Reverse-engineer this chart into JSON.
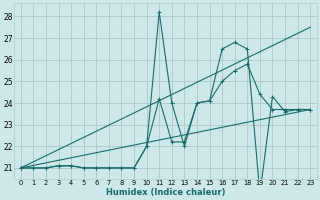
{
  "xlabel": "Humidex (Indice chaleur)",
  "bg_color": "#cde8e8",
  "grid_color": "#b0cccc",
  "line_color": "#1a6b6b",
  "xlim": [
    -0.5,
    23.5
  ],
  "ylim": [
    20.5,
    28.6
  ],
  "yticks": [
    21,
    22,
    23,
    24,
    25,
    26,
    27,
    28
  ],
  "xticks": [
    0,
    1,
    2,
    3,
    4,
    5,
    6,
    7,
    8,
    9,
    10,
    11,
    12,
    13,
    14,
    15,
    16,
    17,
    18,
    19,
    20,
    21,
    22,
    23
  ],
  "series": [
    {
      "x": [
        0,
        1,
        2,
        3,
        4,
        5,
        6,
        7,
        8,
        9,
        10,
        11,
        12,
        13,
        14,
        15,
        16,
        17,
        18,
        19,
        20,
        21,
        22,
        23
      ],
      "y": [
        21.0,
        21.0,
        21.0,
        21.1,
        21.1,
        21.0,
        21.0,
        21.0,
        21.0,
        21.0,
        22.0,
        28.2,
        24.0,
        22.0,
        24.0,
        24.1,
        25.0,
        25.5,
        25.8,
        24.4,
        23.7,
        23.7,
        23.7,
        23.7
      ],
      "style": "dashed_marker"
    },
    {
      "x": [
        0,
        1,
        2,
        3,
        4,
        5,
        6,
        7,
        8,
        9,
        10,
        11,
        12,
        13,
        14,
        15,
        16,
        17,
        18,
        19,
        20,
        21,
        22,
        23
      ],
      "y": [
        21.0,
        21.0,
        21.0,
        21.1,
        21.1,
        21.0,
        21.0,
        21.0,
        21.0,
        21.0,
        22.0,
        24.2,
        22.2,
        22.2,
        24.0,
        24.1,
        26.5,
        26.8,
        26.5,
        19.8,
        24.3,
        23.6,
        23.7,
        23.7
      ],
      "style": "dashed_marker"
    },
    {
      "x": [
        0,
        23
      ],
      "y": [
        21.0,
        23.7
      ],
      "style": "solid"
    },
    {
      "x": [
        0,
        23
      ],
      "y": [
        21.0,
        27.5
      ],
      "style": "solid"
    }
  ]
}
